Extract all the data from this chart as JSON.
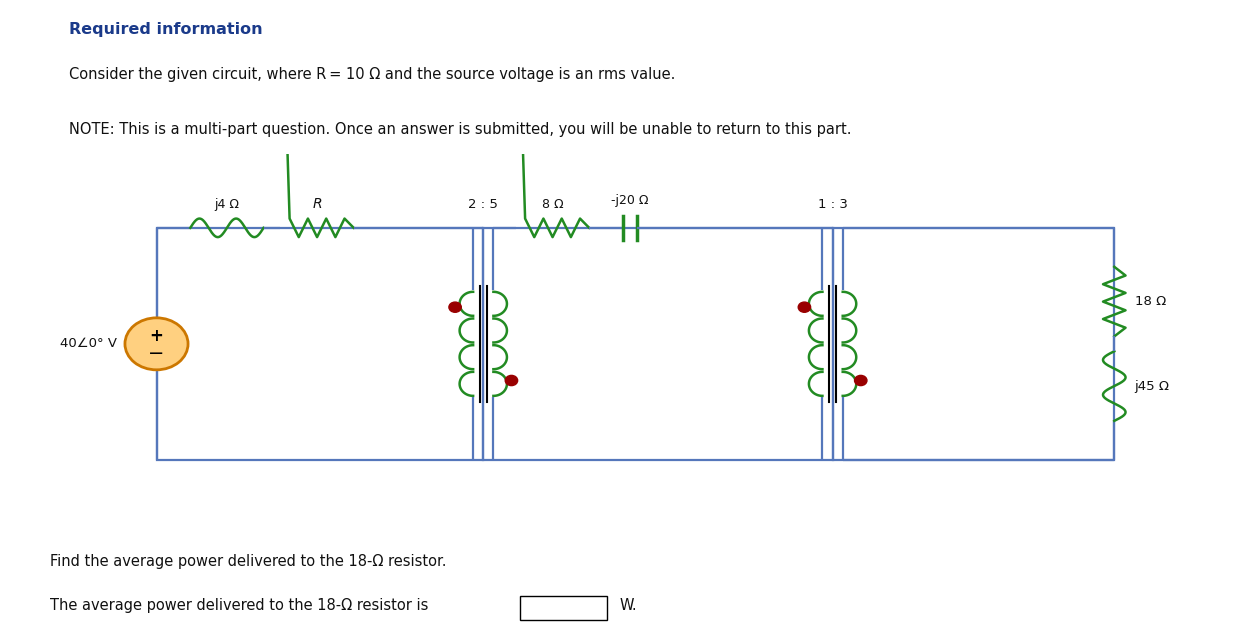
{
  "title": "Required information",
  "line1": "Consider the given circuit, where R = 10 Ω and the source voltage is an rms value.",
  "line2": "NOTE: This is a multi-part question. Once an answer is submitted, you will be unable to return to this part.",
  "footer1": "Find the average power delivered to the 18-Ω resistor.",
  "footer2": "The average power delivered to the 18-Ω resistor is",
  "footer_unit": "W.",
  "circuit_color": "#5577bb",
  "bg_color": "#ffffff",
  "text_color": "#111111",
  "title_color": "#1a3a8a",
  "green_color": "#228B22",
  "red_color": "#990000",
  "orange_color": "#cc7700",
  "orange_fill": "#FFD080",
  "label_j4": "j4 Ω",
  "label_R": "R",
  "label_25": "2 : 5",
  "label_8": "8 Ω",
  "label_j20": "-j20 Ω",
  "label_13": "1 : 3",
  "label_18": "18 Ω",
  "label_j45": "j45 Ω",
  "label_voltage": "40∠0° V"
}
